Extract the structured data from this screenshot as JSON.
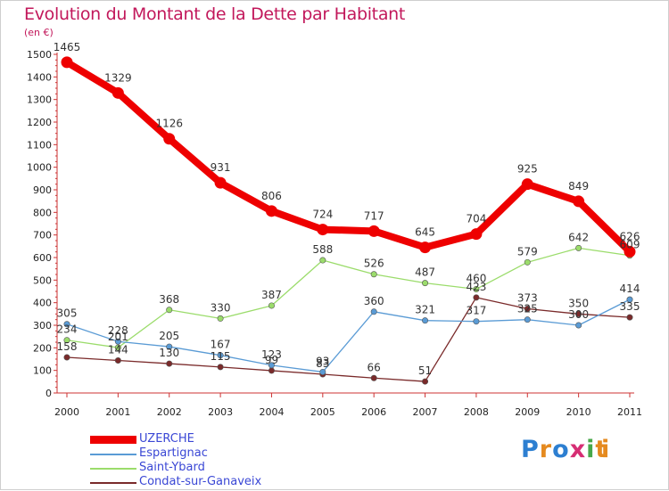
{
  "header": {
    "title": "Evolution du Montant de la Dette par Habitant",
    "subtitle": "(en €)"
  },
  "logo": {
    "text": "Proxiti"
  },
  "chart_data": {
    "type": "line",
    "title": "Evolution du Montant de la Dette par Habitant",
    "ylabel": "(en €)",
    "x": [
      "2000",
      "2001",
      "2002",
      "2003",
      "2004",
      "2005",
      "2006",
      "2007",
      "2008",
      "2009",
      "2010",
      "2011"
    ],
    "ylim": [
      0,
      1500
    ],
    "yticks": [
      0,
      100,
      200,
      300,
      400,
      500,
      600,
      700,
      800,
      900,
      1000,
      1100,
      1200,
      1300,
      1400,
      1500
    ],
    "grid": false,
    "legend_position": "bottom-left",
    "series": [
      {
        "name": "UZERCHE",
        "color": "#ee0000",
        "values": [
          1465,
          1329,
          1126,
          931,
          806,
          724,
          717,
          645,
          704,
          925,
          849,
          626
        ],
        "labels": [
          "1465",
          "1329",
          "1126",
          "931",
          "806",
          "724",
          "717",
          "645",
          "704",
          "925",
          "849",
          "626"
        ]
      },
      {
        "name": "Espartignac",
        "color": "#5a9bd5",
        "values": [
          305,
          228,
          205,
          167,
          123,
          93,
          360,
          321,
          317,
          325,
          300,
          414
        ],
        "labels": [
          "305",
          "228",
          "205",
          "167",
          "123",
          "93",
          "360",
          "321",
          "317",
          "325",
          "300",
          "414"
        ]
      },
      {
        "name": "Saint-Ybard",
        "color": "#9bdc6b",
        "values": [
          234,
          201,
          368,
          330,
          387,
          588,
          526,
          487,
          460,
          579,
          642,
          609
        ],
        "labels": [
          "234",
          "201",
          "368",
          "330",
          "387",
          "588",
          "526",
          "487",
          "460",
          "579",
          "642",
          "609"
        ]
      },
      {
        "name": "Condat-sur-Ganaveix",
        "color": "#7a2a2a",
        "values": [
          158,
          144,
          130,
          115,
          99,
          83,
          66,
          51,
          423,
          373,
          350,
          335
        ],
        "labels": [
          "158",
          "144",
          "130",
          "115",
          "99",
          "83",
          "66",
          "51",
          "423",
          "373",
          "350",
          "335"
        ]
      }
    ]
  }
}
